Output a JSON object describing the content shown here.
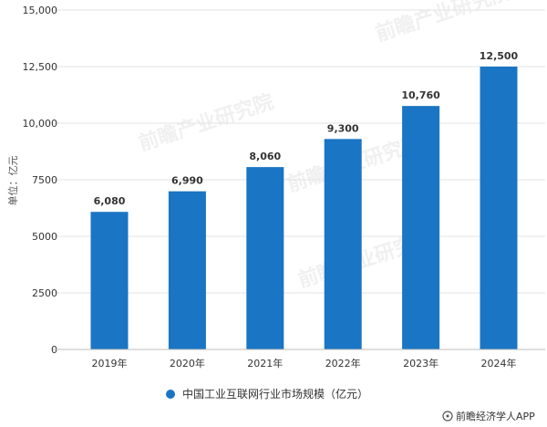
{
  "chart_data": {
    "type": "bar",
    "categories": [
      "2019年",
      "2020年",
      "2021年",
      "2022年",
      "2023年",
      "2024年"
    ],
    "values": [
      6080,
      6990,
      8060,
      9300,
      10760,
      12500
    ],
    "data_labels": [
      "6,080",
      "6,990",
      "8,060",
      "9,300",
      "10,760",
      "12,500"
    ],
    "yticks": [
      0,
      2500,
      5000,
      7500,
      10000,
      12500,
      15000
    ],
    "ytick_labels": [
      "0",
      "2500",
      "5000",
      "7500",
      "10,000",
      "12,500",
      "15,000"
    ],
    "ylim": [
      0,
      15000
    ],
    "ylabel": "单位：亿元",
    "xlabel": "",
    "title": "",
    "grid": true,
    "legend_position": "bottom",
    "series": [
      {
        "name": "中国工业互联网行业市场规模（亿元）",
        "color": "#1a75c4"
      }
    ]
  },
  "watermark": {
    "text": "前瞻产业研究院"
  },
  "credit": {
    "icon": "brand-icon",
    "text": "前瞻经济学人APP"
  }
}
